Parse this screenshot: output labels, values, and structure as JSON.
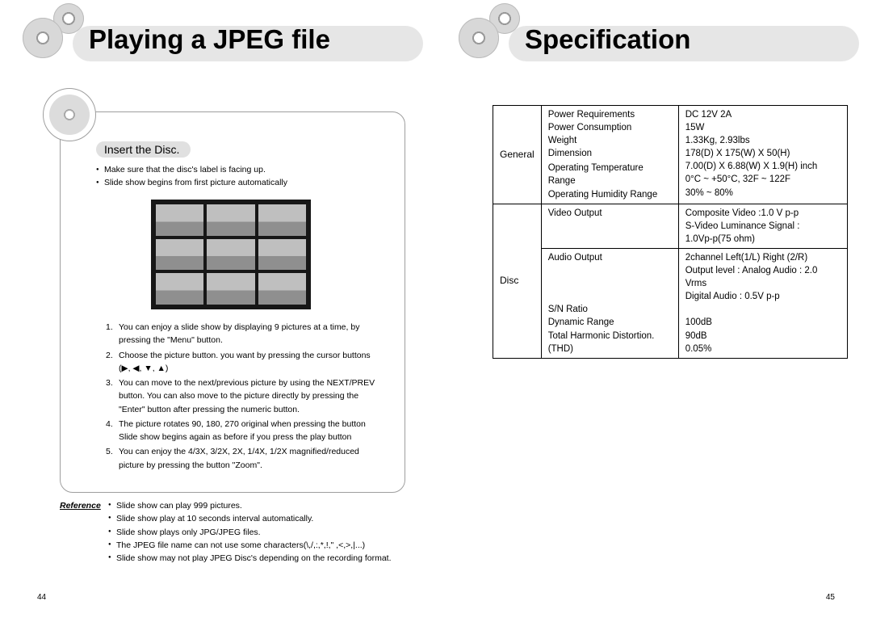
{
  "left": {
    "title": "Playing a JPEG file",
    "subTitle": "Insert the Disc.",
    "intro": [
      "Make sure that the disc's label is facing up.",
      "Slide show begins from first picture automatically"
    ],
    "steps": [
      "You can enjoy a slide show by displaying 9 pictures at a time, by pressing the \"Menu\" button.",
      "Choose the picture button. you want by pressing the cursor buttons (▶, ◀, ▼, ▲)",
      "You can move to the next/previous picture by using the NEXT/PREV button. You can also move to the picture directly by pressing the \"Enter\" button after pressing the numeric button.",
      "The picture rotates 90, 180, 270 original when pressing the button Slide show begins again as before if you press the play button",
      "You can enjoy the 4/3X, 3/2X, 2X, 1/4X, 1/2X magnified/reduced picture by pressing the button \"Zoom\"."
    ],
    "refLabel": "Reference",
    "reference": [
      "Slide show can play 999 pictures.",
      "Slide show play at 10 seconds interval automatically.",
      "Slide show plays only JPG/JPEG files.",
      "The JPEG file name can not use some characters(\\,/,:,*,!,\" ,<,>,|...)",
      "Slide show may not play JPEG Disc's depending on the recording format."
    ],
    "pageNum": "44"
  },
  "right": {
    "title": "Specification",
    "pageNum": "45",
    "table": {
      "cat1": "General",
      "cat2": "Disc",
      "rows1": [
        {
          "l": "Power Requirements",
          "v": "DC 12V 2A"
        },
        {
          "l": "Power Consumption",
          "v": "15W"
        },
        {
          "l": "Weight",
          "v": "1.33Kg, 2.93lbs"
        },
        {
          "l": "Dimension",
          "v": "178(D) X 175(W) X 50(H)\n7.00(D) X 6.88(W) X 1.9(H) inch"
        },
        {
          "l": "Operating Temperature Range",
          "v": "0°C ~ +50°C, 32F ~ 122F"
        },
        {
          "l": "Operating Humidity Range",
          "v": "30% ~ 80%"
        }
      ],
      "rows2": [
        {
          "l": "Video Output",
          "v": "Composite Video :1.0 V p-p\nS-Video Luminance Signal :\n1.0Vp-p(75 ohm)"
        },
        {
          "l": "Audio Output",
          "v": "2channel Left(1/L) Right (2/R)\nOutput level : Analog Audio : 2.0 Vrms\n Digital Audio : 0.5V p-p"
        },
        {
          "l": "S/N Ratio",
          "v": "100dB"
        },
        {
          "l": "Dynamic Range",
          "v": "90dB"
        },
        {
          "l": "Total Harmonic Distortion.(THD)",
          "v": "0.05%"
        }
      ]
    }
  }
}
